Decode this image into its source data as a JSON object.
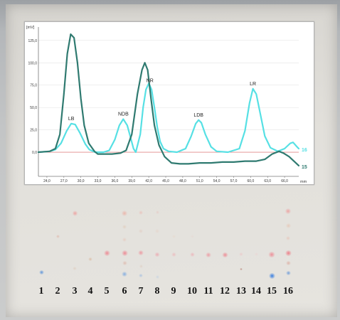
{
  "chart_data": {
    "type": "line",
    "y_unit": "[mV]",
    "x_unit": "mm",
    "x_ticks": [
      "24,0",
      "27,0",
      "30,0",
      "33,0",
      "36,0",
      "39,0",
      "42,0",
      "45,0",
      "48,0",
      "51,0",
      "54,0",
      "57,0",
      "60,0",
      "63,0",
      "66,0"
    ],
    "y_ticks": [
      "0,0",
      "25,0",
      "50,0",
      "75,0",
      "100,0",
      "125,0"
    ],
    "xlim": [
      22.5,
      68.5
    ],
    "ylim": [
      -27,
      140
    ],
    "grid": true,
    "series": [
      {
        "name": "16",
        "color": "#56e0e4",
        "points": [
          [
            22.5,
            0
          ],
          [
            24.5,
            1
          ],
          [
            25.5,
            3
          ],
          [
            26.5,
            10
          ],
          [
            27.5,
            24
          ],
          [
            28.3,
            32
          ],
          [
            29,
            31
          ],
          [
            29.8,
            22
          ],
          [
            30.8,
            9
          ],
          [
            31.5,
            3
          ],
          [
            32.5,
            0
          ],
          [
            34,
            0
          ],
          [
            35,
            2
          ],
          [
            36,
            14
          ],
          [
            36.8,
            30
          ],
          [
            37.5,
            37
          ],
          [
            38.2,
            30
          ],
          [
            38.8,
            16
          ],
          [
            39.3,
            4
          ],
          [
            39.7,
            0
          ],
          [
            40.5,
            20
          ],
          [
            41,
            50
          ],
          [
            41.5,
            70
          ],
          [
            42,
            77
          ],
          [
            42.5,
            70
          ],
          [
            43,
            50
          ],
          [
            43.5,
            28
          ],
          [
            44,
            12
          ],
          [
            44.6,
            4
          ],
          [
            45.5,
            1
          ],
          [
            47,
            0
          ],
          [
            48.5,
            4
          ],
          [
            49.5,
            18
          ],
          [
            50.3,
            32
          ],
          [
            50.8,
            36
          ],
          [
            51.3,
            33
          ],
          [
            52,
            20
          ],
          [
            53,
            6
          ],
          [
            54,
            1
          ],
          [
            56,
            0
          ],
          [
            58,
            4
          ],
          [
            59,
            24
          ],
          [
            59.8,
            55
          ],
          [
            60.4,
            71
          ],
          [
            61,
            65
          ],
          [
            61.8,
            40
          ],
          [
            62.5,
            18
          ],
          [
            63.5,
            5
          ],
          [
            64.8,
            1
          ],
          [
            66,
            4
          ],
          [
            67,
            10
          ],
          [
            67.5,
            11
          ],
          [
            68.2,
            6
          ],
          [
            68.5,
            4
          ]
        ]
      },
      {
        "name": "15",
        "color": "#2f7a70",
        "points": [
          [
            22.5,
            0
          ],
          [
            24.5,
            1
          ],
          [
            25.5,
            4
          ],
          [
            26.3,
            20
          ],
          [
            27,
            65
          ],
          [
            27.6,
            110
          ],
          [
            28.2,
            132
          ],
          [
            28.8,
            128
          ],
          [
            29.4,
            100
          ],
          [
            30,
            60
          ],
          [
            30.6,
            30
          ],
          [
            31.4,
            10
          ],
          [
            32.4,
            1
          ],
          [
            33,
            -2
          ],
          [
            34,
            -2
          ],
          [
            35.5,
            -2
          ],
          [
            37,
            -1
          ],
          [
            38,
            2
          ],
          [
            39,
            20
          ],
          [
            40,
            65
          ],
          [
            40.8,
            92
          ],
          [
            41.3,
            100
          ],
          [
            41.8,
            92
          ],
          [
            42.4,
            60
          ],
          [
            43,
            30
          ],
          [
            43.8,
            8
          ],
          [
            44.8,
            -5
          ],
          [
            46,
            -12
          ],
          [
            47.5,
            -13
          ],
          [
            49,
            -13
          ],
          [
            51,
            -12
          ],
          [
            53,
            -12
          ],
          [
            55,
            -11
          ],
          [
            57,
            -11
          ],
          [
            59,
            -10
          ],
          [
            61,
            -10
          ],
          [
            62.5,
            -8
          ],
          [
            63.8,
            -2
          ],
          [
            65,
            1
          ],
          [
            65.8,
            -1
          ],
          [
            66.8,
            -5
          ],
          [
            68.5,
            -15
          ]
        ]
      }
    ],
    "annotations": [
      {
        "text": "LB",
        "x": 28.3
      },
      {
        "text": "NDB",
        "x": 37.5
      },
      {
        "text": "NR",
        "x": 42.2
      },
      {
        "text": "LDB",
        "x": 50.8
      },
      {
        "text": "LR",
        "x": 60.4
      }
    ]
  },
  "plate": {
    "lane_numbers": [
      "1",
      "2",
      "3",
      "4",
      "5",
      "6",
      "7",
      "8",
      "9",
      "10",
      "11",
      "12",
      "13",
      "14",
      "15",
      "16"
    ]
  }
}
